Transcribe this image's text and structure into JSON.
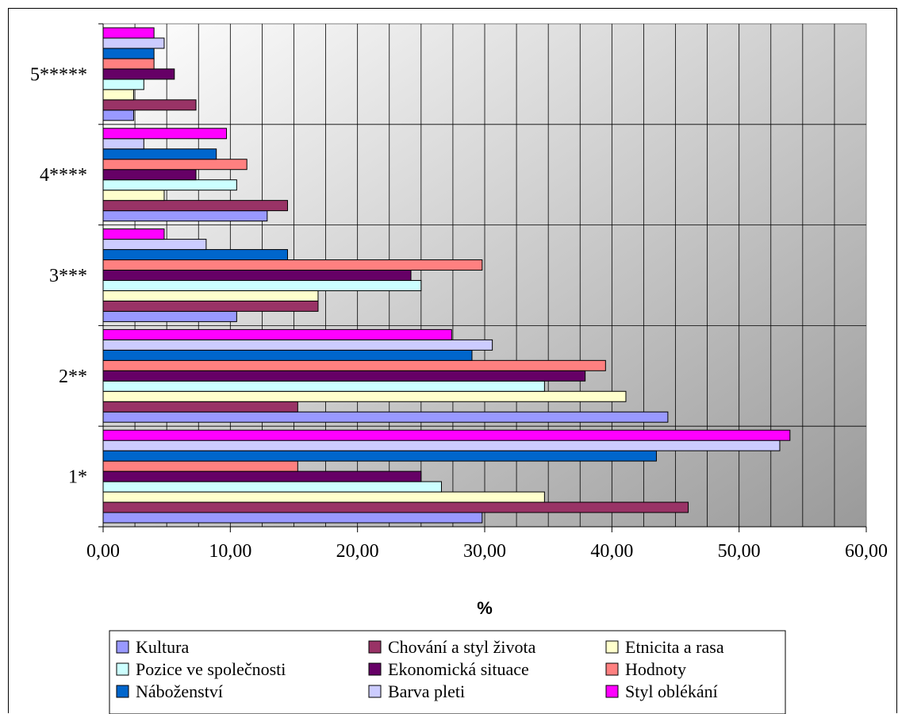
{
  "chart_data": {
    "type": "bar",
    "orientation": "horizontal",
    "categories": [
      "1*",
      "2**",
      "3***",
      "4****",
      "5*****"
    ],
    "xlabel": "%",
    "ylabel": "",
    "xlim": [
      0,
      60
    ],
    "x_ticks": [
      "0,00",
      "10,00",
      "20,00",
      "30,00",
      "40,00",
      "50,00",
      "60,00"
    ],
    "grid": true,
    "legend_position": "bottom",
    "series": [
      {
        "name": "Kultura",
        "color": "#9999ff",
        "values": [
          29.8,
          44.4,
          10.5,
          12.9,
          2.4
        ]
      },
      {
        "name": "Chování a styl života",
        "color": "#993366",
        "values": [
          46.0,
          15.3,
          16.9,
          14.5,
          7.3
        ]
      },
      {
        "name": "Etnicita a rasa",
        "color": "#ffffcc",
        "values": [
          34.7,
          41.1,
          16.9,
          4.8,
          2.4
        ]
      },
      {
        "name": "Pozice ve společnosti",
        "color": "#ccffff",
        "values": [
          26.6,
          34.7,
          25.0,
          10.5,
          3.2
        ]
      },
      {
        "name": "Ekonomická situace",
        "color": "#660066",
        "values": [
          25.0,
          37.9,
          24.2,
          7.3,
          5.6
        ]
      },
      {
        "name": "Hodnoty",
        "color": "#ff8080",
        "values": [
          15.3,
          39.5,
          29.8,
          11.3,
          4.0
        ]
      },
      {
        "name": "Náboženství",
        "color": "#0066cc",
        "values": [
          43.5,
          29.0,
          14.5,
          8.9,
          4.0
        ]
      },
      {
        "name": "Barva pleti",
        "color": "#ccccff",
        "values": [
          53.2,
          30.6,
          8.1,
          3.2,
          4.8
        ]
      },
      {
        "name": "Styl oblékání",
        "color": "#ff00ff",
        "values": [
          54.0,
          27.4,
          4.8,
          9.7,
          4.0
        ]
      }
    ]
  }
}
